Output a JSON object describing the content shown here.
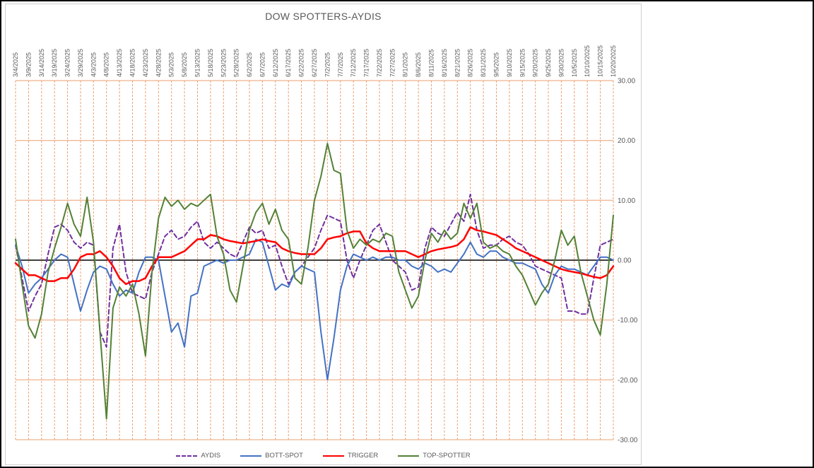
{
  "chart_data": {
    "type": "line",
    "title": "DOW SPOTTERS-AYDIS",
    "grid_color": "#EBA072",
    "axis_text_color": "#595959",
    "zero_line_color": "#000000",
    "background": "#FFFFFF",
    "legend_position": "bottom",
    "y_axis": {
      "min": -30,
      "max": 30,
      "tick_step": 10
    },
    "y_ticks": [
      "30.00",
      "20.00",
      "10.00",
      "0.00",
      "-10.00",
      "-20.00",
      "-30.00"
    ],
    "points_per_label": 2,
    "x_labels": [
      "3/4/2025",
      "3/9/2025",
      "3/14/2025",
      "3/19/2025",
      "3/24/2025",
      "3/29/2025",
      "4/3/2025",
      "4/8/2025",
      "4/13/2025",
      "4/18/2025",
      "4/23/2025",
      "4/28/2025",
      "5/3/2025",
      "5/8/2025",
      "5/13/2025",
      "5/18/2025",
      "5/23/2025",
      "5/28/2025",
      "6/2/2025",
      "6/7/2025",
      "6/12/2025",
      "6/17/2025",
      "6/22/2025",
      "6/27/2025",
      "7/2/2025",
      "7/7/2025",
      "7/12/2025",
      "7/17/2025",
      "7/22/2025",
      "7/27/2025",
      "8/1/2025",
      "8/6/2025",
      "8/11/2025",
      "8/16/2025",
      "8/21/2025",
      "8/26/2025",
      "8/31/2025",
      "9/5/2025",
      "9/10/2025",
      "9/15/2025",
      "9/20/2025",
      "9/25/2025",
      "9/30/2025",
      "10/5/2025",
      "10/10/2025",
      "10/15/2025",
      "10/20/2025"
    ],
    "series": [
      {
        "name": "AYDIS",
        "color": "#7030A0",
        "dash": "6 4",
        "width": 2,
        "values": [
          2.5,
          -3,
          -8.5,
          -6,
          -4,
          1,
          5.5,
          6,
          5,
          3,
          2,
          3,
          2.5,
          -12,
          -14.5,
          2,
          6,
          -2,
          -5.5,
          -6,
          -6.5,
          -2,
          1,
          4,
          5,
          3.5,
          4,
          5.5,
          6.5,
          3,
          2,
          3,
          2,
          1,
          0.5,
          3,
          5.5,
          4.5,
          5,
          2,
          2.5,
          -1,
          -4,
          -2,
          -1,
          0.5,
          2,
          5,
          7.5,
          7,
          6.5,
          0,
          -3,
          0,
          2.5,
          5,
          6,
          3,
          0,
          -1,
          -2,
          -5,
          -4.5,
          2,
          5.5,
          4.5,
          4,
          6,
          8,
          6.5,
          11,
          5,
          2,
          2.5,
          2.5,
          3.5,
          4,
          3,
          2.5,
          1,
          -1,
          -1.5,
          -2,
          -2.5,
          -3,
          -8.5,
          -8.5,
          -9,
          -9,
          -3,
          2.5,
          3,
          3.5
        ]
      },
      {
        "name": "BOTT-SPOT",
        "color": "#4472C4",
        "dash": null,
        "width": 2,
        "values": [
          2.5,
          -1,
          -5.5,
          -4,
          -3,
          -1.5,
          0,
          1,
          0.5,
          -4,
          -8.5,
          -5,
          -2,
          -1,
          -1.5,
          -4,
          -6,
          -5,
          -5.5,
          -2,
          0.5,
          0.5,
          0,
          -6,
          -12,
          -10.5,
          -14.5,
          -6,
          -5.5,
          -1,
          -0.5,
          0,
          -0.5,
          0,
          0,
          0.5,
          1,
          3.5,
          3,
          -1,
          -5,
          -4,
          -4.5,
          -2,
          -1,
          -1.5,
          -2,
          -12,
          -20,
          -13,
          -5,
          -1,
          1,
          0.5,
          0,
          0.5,
          0,
          0.5,
          0.5,
          0,
          0,
          -1,
          -1.5,
          -0.5,
          -1,
          -2,
          -1.5,
          -2,
          -0.5,
          1,
          3,
          1,
          0.5,
          1.5,
          1.5,
          0.5,
          0,
          -0.5,
          -0.5,
          -1,
          -1.5,
          -4,
          -5.5,
          -2.5,
          -1,
          -1.5,
          -1.5,
          -2,
          -2.5,
          -1,
          0.5,
          0.5,
          0
        ]
      },
      {
        "name": "TRIGGER",
        "color": "#FF0000",
        "dash": null,
        "width": 2.5,
        "values": [
          -0.5,
          -1.5,
          -2.5,
          -2.5,
          -3,
          -3.5,
          -3.5,
          -3,
          -3,
          -1.5,
          0.5,
          1,
          1,
          1.5,
          0.5,
          -1,
          -3,
          -4,
          -3.5,
          -3.5,
          -3,
          -1,
          0.5,
          0.5,
          0.5,
          1,
          1.5,
          2.5,
          3.5,
          3.5,
          4.2,
          4,
          3.5,
          3.2,
          3,
          2.8,
          3,
          3.2,
          3.5,
          3.2,
          3,
          2,
          1.5,
          1.2,
          1,
          1,
          1,
          2,
          3.5,
          3.8,
          4,
          4.5,
          4.8,
          4.8,
          2.8,
          2,
          1.5,
          1.5,
          1.5,
          1.5,
          1.5,
          1,
          0.5,
          1,
          1.5,
          1.8,
          2,
          2.2,
          2.5,
          3.5,
          5.5,
          5,
          4.8,
          4.5,
          4.2,
          3.5,
          2.8,
          2,
          1.5,
          1,
          0.5,
          0,
          -0.5,
          -1,
          -1.5,
          -1.8,
          -2,
          -2.2,
          -2.5,
          -2.8,
          -3,
          -2.5,
          -1
        ]
      },
      {
        "name": "TOP-SPOTTER",
        "color": "#538135",
        "dash": null,
        "width": 2,
        "values": [
          3.5,
          -4,
          -11,
          -13,
          -9,
          -2,
          2,
          5.5,
          9.5,
          6,
          4,
          10.5,
          3,
          -12,
          -26.5,
          -8,
          -4.5,
          -6,
          -4,
          -9,
          -16,
          -2,
          7,
          10.5,
          9,
          10,
          8.5,
          9.5,
          9,
          10,
          11,
          4,
          1,
          -5,
          -7,
          -1,
          5,
          8,
          9.5,
          6,
          8.5,
          5,
          3.5,
          -3,
          -4,
          2,
          10,
          14,
          19.5,
          15,
          14.5,
          5,
          2,
          3.5,
          2.5,
          3.5,
          3,
          4.5,
          4,
          -2,
          -5,
          -8,
          -6,
          0,
          4.5,
          3,
          5,
          3.5,
          4.5,
          9.5,
          7,
          9.5,
          3,
          2,
          2.5,
          1.5,
          1,
          -1,
          -2.5,
          -5,
          -7.5,
          -5.5,
          -4,
          0,
          5,
          2.5,
          4,
          -2,
          -6,
          -10,
          -12.5,
          -4,
          7.5
        ]
      }
    ],
    "legend": [
      "AYDIS",
      "BOTT-SPOT",
      "TRIGGER",
      "TOP-SPOTTER"
    ]
  }
}
